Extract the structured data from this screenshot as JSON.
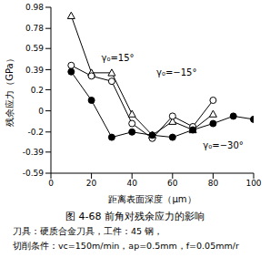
{
  "chart_data": {
    "type": "line",
    "title": "图 4-68 前角对残余应力的影响",
    "subtitle": [
      "刀具：硬质合金刀具，工件：45 钢，",
      "切削条件：vc=150m/min，ap=0.5mm，f=0.05mm/r"
    ],
    "x_label": "距离表面深度（μm）",
    "y_label": "残余应力（GPa）",
    "xlim": [
      0,
      100
    ],
    "xticks": [
      0,
      20,
      40,
      60,
      80,
      100
    ],
    "ylim": [
      -0.59,
      0.98
    ],
    "yticks": [
      -0.59,
      -0.39,
      -0.2,
      0,
      0.2,
      0.39,
      0.59,
      0.78,
      0.98
    ],
    "grid": false,
    "series": [
      {
        "color": "#000000",
        "marker": "triangle",
        "x": [
          10,
          20,
          30,
          40,
          50,
          60,
          70,
          80
        ],
        "values": [
          0.9,
          0.36,
          0.36,
          -0.03,
          -0.23,
          -0.1,
          -0.18,
          -0.03
        ]
      },
      {
        "color": "#000000",
        "marker": "open_circle",
        "x": [
          10,
          20,
          30,
          40,
          50,
          60,
          70,
          80
        ],
        "values": [
          0.43,
          0.33,
          0.28,
          -0.12,
          -0.26,
          -0.05,
          -0.15,
          0.1
        ]
      },
      {
        "color": "#000000",
        "marker": "filled_circle",
        "x": [
          10,
          20,
          30,
          40,
          50,
          60,
          70,
          80,
          90,
          100
        ],
        "values": [
          0.37,
          0.1,
          -0.25,
          -0.2,
          -0.23,
          -0.25,
          -0.18,
          -0.12,
          -0.05,
          -0.08
        ]
      }
    ],
    "annotations": [
      {
        "text": "γ₀=15°",
        "x": 33,
        "y": 0.5
      },
      {
        "text": "γ₀=−15°",
        "x": 62,
        "y": 0.36
      },
      {
        "text": "γ₀=−30°",
        "x": 85,
        "y": -0.33
      }
    ]
  }
}
